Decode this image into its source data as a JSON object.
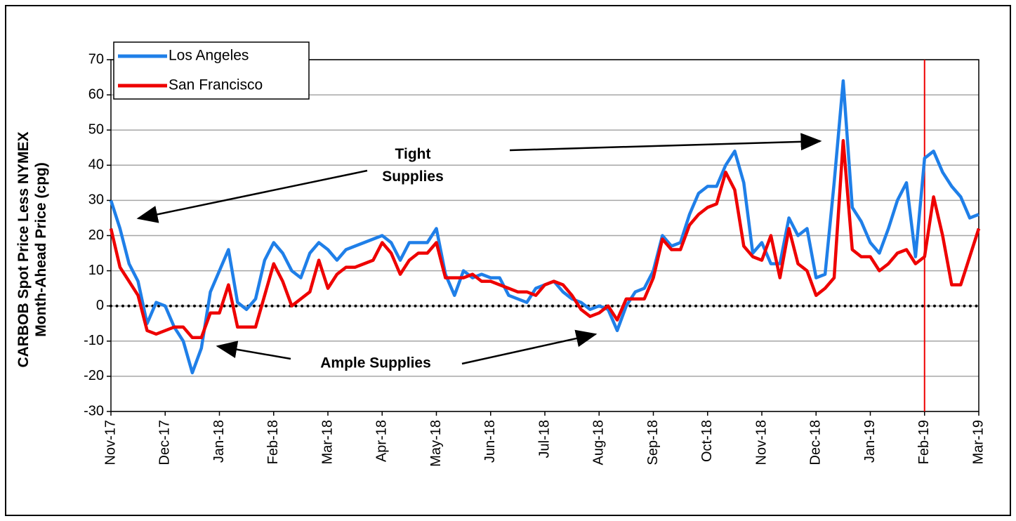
{
  "chart_data": {
    "type": "line",
    "y_label": [
      "CARBOB Spot Price Less NYMEX",
      "Month-Ahead Price (cpg)"
    ],
    "categories": [
      "Nov-17",
      null,
      null,
      null,
      null,
      null,
      "Dec-17",
      null,
      null,
      null,
      null,
      null,
      "Jan-18",
      null,
      null,
      null,
      null,
      null,
      "Feb-18",
      null,
      null,
      null,
      null,
      null,
      "Mar-18",
      null,
      null,
      null,
      null,
      null,
      "Apr-18",
      null,
      null,
      null,
      null,
      null,
      "May-18",
      null,
      null,
      null,
      null,
      null,
      "Jun-18",
      null,
      null,
      null,
      null,
      null,
      "Jul-18",
      null,
      null,
      null,
      null,
      null,
      "Aug-18",
      null,
      null,
      null,
      null,
      null,
      "Sep-18",
      null,
      null,
      null,
      null,
      null,
      "Oct-18",
      null,
      null,
      null,
      null,
      null,
      "Nov-18",
      null,
      null,
      null,
      null,
      null,
      "Dec-18",
      null,
      null,
      null,
      null,
      null,
      "Jan-19",
      null,
      null,
      null,
      null,
      null,
      "Feb-19",
      null,
      null,
      null,
      null,
      null,
      "Mar-19"
    ],
    "series": [
      {
        "name": "Los Angeles",
        "color": "#1f7fe8",
        "values": [
          30,
          22,
          12,
          7,
          -5,
          1,
          0,
          -6,
          -10,
          -19,
          -12,
          4,
          10,
          16,
          1,
          -1,
          2,
          13,
          18,
          15,
          10,
          8,
          15,
          18,
          16,
          13,
          16,
          17,
          18,
          19,
          20,
          18,
          13,
          18,
          18,
          18,
          22,
          9,
          3,
          10,
          8,
          9,
          8,
          8,
          3,
          2,
          1,
          5,
          6,
          7,
          4,
          2,
          1,
          -1,
          0,
          -1,
          -7,
          0,
          4,
          5,
          10,
          20,
          17,
          18,
          26,
          32,
          34,
          34,
          40,
          44,
          35,
          15,
          18,
          12,
          12,
          25,
          20,
          22,
          8,
          9,
          35,
          64,
          28,
          24,
          18,
          15,
          22,
          30,
          35,
          14,
          42,
          44,
          38,
          34,
          31,
          25,
          26
        ]
      },
      {
        "name": "San Francisco",
        "color": "#ee0000",
        "values": [
          22,
          11,
          7,
          3,
          -7,
          -8,
          -7,
          -6,
          -6,
          -9,
          -9,
          -2,
          -2,
          6,
          -6,
          -6,
          -6,
          3,
          12,
          7,
          0,
          2,
          4,
          13,
          5,
          9,
          11,
          11,
          12,
          13,
          18,
          15,
          9,
          13,
          15,
          15,
          18,
          8,
          8,
          8,
          9,
          7,
          7,
          6,
          5,
          4,
          4,
          3,
          6,
          7,
          6,
          3,
          -1,
          -3,
          -2,
          0,
          -4,
          2,
          2,
          2,
          8,
          19,
          16,
          16,
          23,
          26,
          28,
          29,
          38,
          33,
          17,
          14,
          13,
          20,
          8,
          22,
          12,
          10,
          3,
          5,
          8,
          47,
          16,
          14,
          14,
          10,
          12,
          15,
          16,
          12,
          14,
          31,
          20,
          6,
          6,
          14,
          22
        ]
      }
    ],
    "ylim": [
      -30,
      70
    ],
    "yticks": [
      -30,
      -20,
      -10,
      0,
      10,
      20,
      30,
      40,
      50,
      60,
      70
    ],
    "grid": true,
    "zero_line": true,
    "legend": "top-left",
    "vertical_line": {
      "x": "Feb-19",
      "color": "#ee0000"
    },
    "annotations": [
      [
        "Tight",
        "Supplies"
      ],
      [
        "Ample Supplies"
      ]
    ]
  }
}
